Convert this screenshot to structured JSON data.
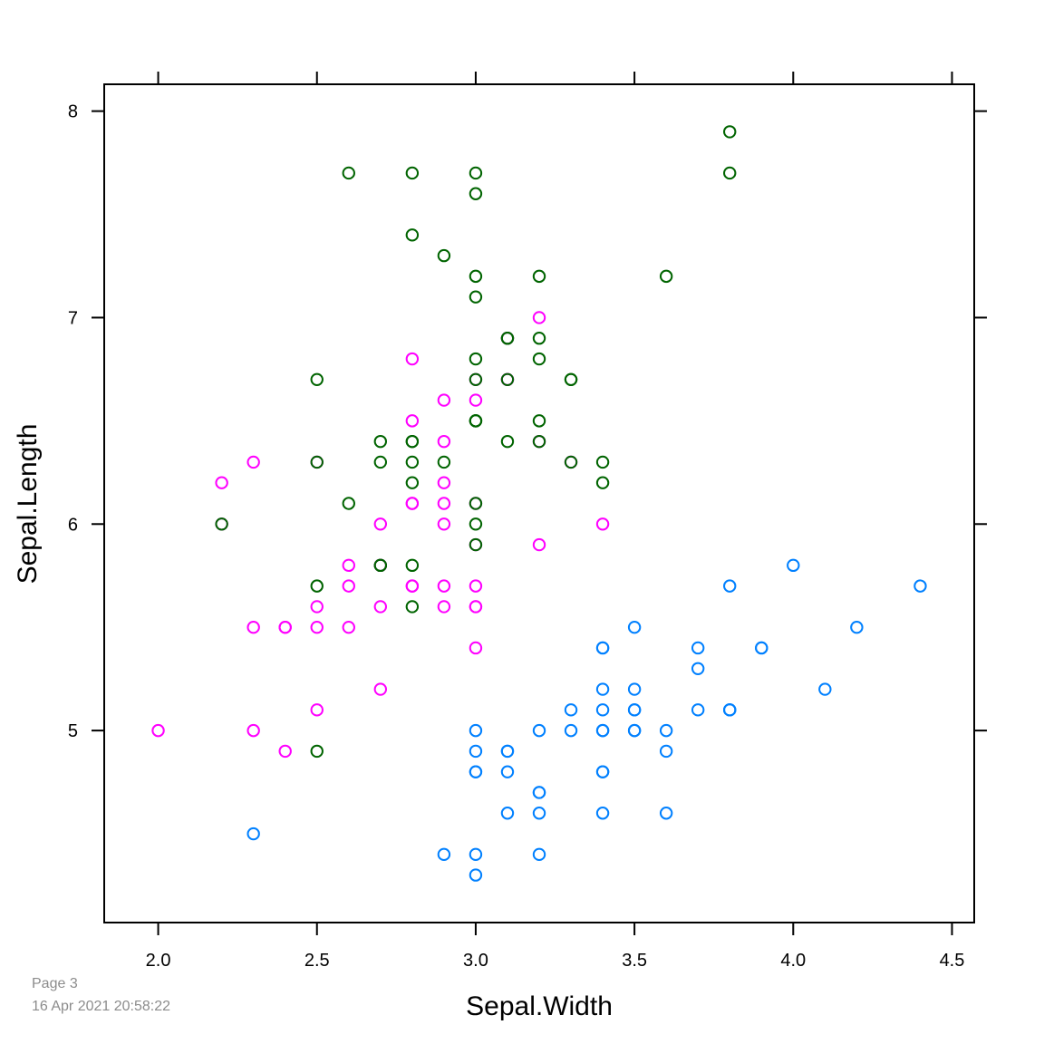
{
  "footer": {
    "page": "Page 3",
    "timestamp": "16 Apr 2021 20:58:22"
  },
  "chart_data": {
    "type": "scatter",
    "title": "",
    "xlabel": "Sepal.Width",
    "ylabel": "Sepal.Length",
    "xlim": [
      1.83,
      4.57
    ],
    "ylim": [
      4.07,
      8.13
    ],
    "x_ticks": [
      2.0,
      2.5,
      3.0,
      3.5,
      4.0,
      4.5
    ],
    "x_tick_labels": [
      "2.0",
      "2.5",
      "3.0",
      "3.5",
      "4.0",
      "4.5"
    ],
    "y_ticks": [
      5,
      6,
      7,
      8
    ],
    "y_tick_labels": [
      "5",
      "6",
      "7",
      "8"
    ],
    "grid": false,
    "marker": "open-circle",
    "series": [
      {
        "color": "#0080ff",
        "x": [
          3.5,
          3.0,
          3.2,
          3.1,
          3.6,
          3.9,
          3.4,
          3.4,
          2.9,
          3.1,
          3.7,
          3.4,
          3.0,
          3.0,
          4.0,
          4.4,
          3.9,
          3.5,
          3.8,
          3.8,
          3.4,
          3.7,
          3.6,
          3.3,
          3.4,
          3.0,
          3.4,
          3.5,
          3.4,
          3.2,
          3.1,
          3.4,
          4.1,
          4.2,
          3.1,
          3.2,
          3.5,
          3.6,
          3.0,
          3.4,
          3.5,
          2.3,
          3.2,
          3.5,
          3.8,
          3.0,
          3.8,
          3.2,
          3.7,
          3.3
        ],
        "y": [
          5.1,
          4.9,
          4.7,
          4.6,
          5.0,
          5.4,
          4.6,
          5.0,
          4.4,
          4.9,
          5.4,
          4.8,
          4.8,
          4.3,
          5.8,
          5.7,
          5.4,
          5.1,
          5.7,
          5.1,
          5.4,
          5.1,
          4.6,
          5.1,
          4.8,
          5.0,
          5.0,
          5.2,
          5.2,
          4.7,
          4.8,
          5.4,
          5.2,
          5.5,
          4.9,
          5.0,
          5.5,
          4.9,
          4.4,
          5.1,
          5.0,
          4.5,
          4.4,
          5.0,
          5.1,
          4.8,
          5.1,
          4.6,
          5.3,
          5.0
        ]
      },
      {
        "color": "#ff00ff",
        "x": [
          3.2,
          3.2,
          3.1,
          2.3,
          2.8,
          2.8,
          3.3,
          2.4,
          2.9,
          2.7,
          2.0,
          3.0,
          2.2,
          2.9,
          2.9,
          3.1,
          3.0,
          2.7,
          2.2,
          2.5,
          3.2,
          2.8,
          2.5,
          2.8,
          2.9,
          3.0,
          2.8,
          3.0,
          2.9,
          2.6,
          2.4,
          2.4,
          2.7,
          2.7,
          3.0,
          3.4,
          3.1,
          2.3,
          3.0,
          2.5,
          2.6,
          3.0,
          2.6,
          2.3,
          2.7,
          3.0,
          2.9,
          2.9,
          2.5,
          2.8
        ],
        "y": [
          7.0,
          6.4,
          6.9,
          5.5,
          6.5,
          5.7,
          6.3,
          4.9,
          6.6,
          5.2,
          5.0,
          5.9,
          6.0,
          6.1,
          5.6,
          6.7,
          5.6,
          5.8,
          6.2,
          5.6,
          5.9,
          6.1,
          6.3,
          6.1,
          6.4,
          6.6,
          6.8,
          6.7,
          6.0,
          5.7,
          5.5,
          5.5,
          5.8,
          6.0,
          5.4,
          6.0,
          6.7,
          6.3,
          5.6,
          5.5,
          5.5,
          6.1,
          5.8,
          5.0,
          5.6,
          5.7,
          5.7,
          6.2,
          5.1,
          5.7
        ]
      },
      {
        "color": "#006400",
        "x": [
          3.3,
          2.7,
          3.0,
          2.9,
          3.0,
          3.0,
          2.5,
          2.9,
          2.5,
          3.6,
          3.2,
          2.7,
          3.0,
          2.5,
          2.8,
          3.2,
          3.0,
          3.8,
          2.6,
          2.2,
          3.2,
          2.8,
          2.8,
          2.7,
          3.3,
          3.2,
          2.8,
          3.0,
          2.8,
          3.0,
          2.8,
          3.8,
          2.8,
          2.8,
          2.6,
          3.0,
          3.4,
          3.1,
          3.0,
          3.1,
          3.1,
          3.1,
          2.7,
          3.2,
          3.3,
          3.0,
          2.5,
          3.0,
          3.4,
          3.0
        ],
        "y": [
          6.3,
          5.8,
          7.1,
          6.3,
          6.5,
          7.6,
          4.9,
          7.3,
          6.7,
          7.2,
          6.5,
          6.4,
          6.8,
          5.7,
          5.8,
          6.4,
          6.5,
          7.7,
          7.7,
          6.0,
          6.9,
          5.6,
          7.7,
          6.3,
          6.7,
          7.2,
          6.2,
          6.1,
          6.4,
          7.2,
          7.4,
          7.9,
          6.4,
          6.3,
          6.1,
          7.7,
          6.3,
          6.4,
          6.0,
          6.9,
          6.7,
          6.9,
          5.8,
          6.8,
          6.7,
          6.7,
          6.3,
          6.5,
          6.2,
          5.9
        ]
      }
    ]
  }
}
